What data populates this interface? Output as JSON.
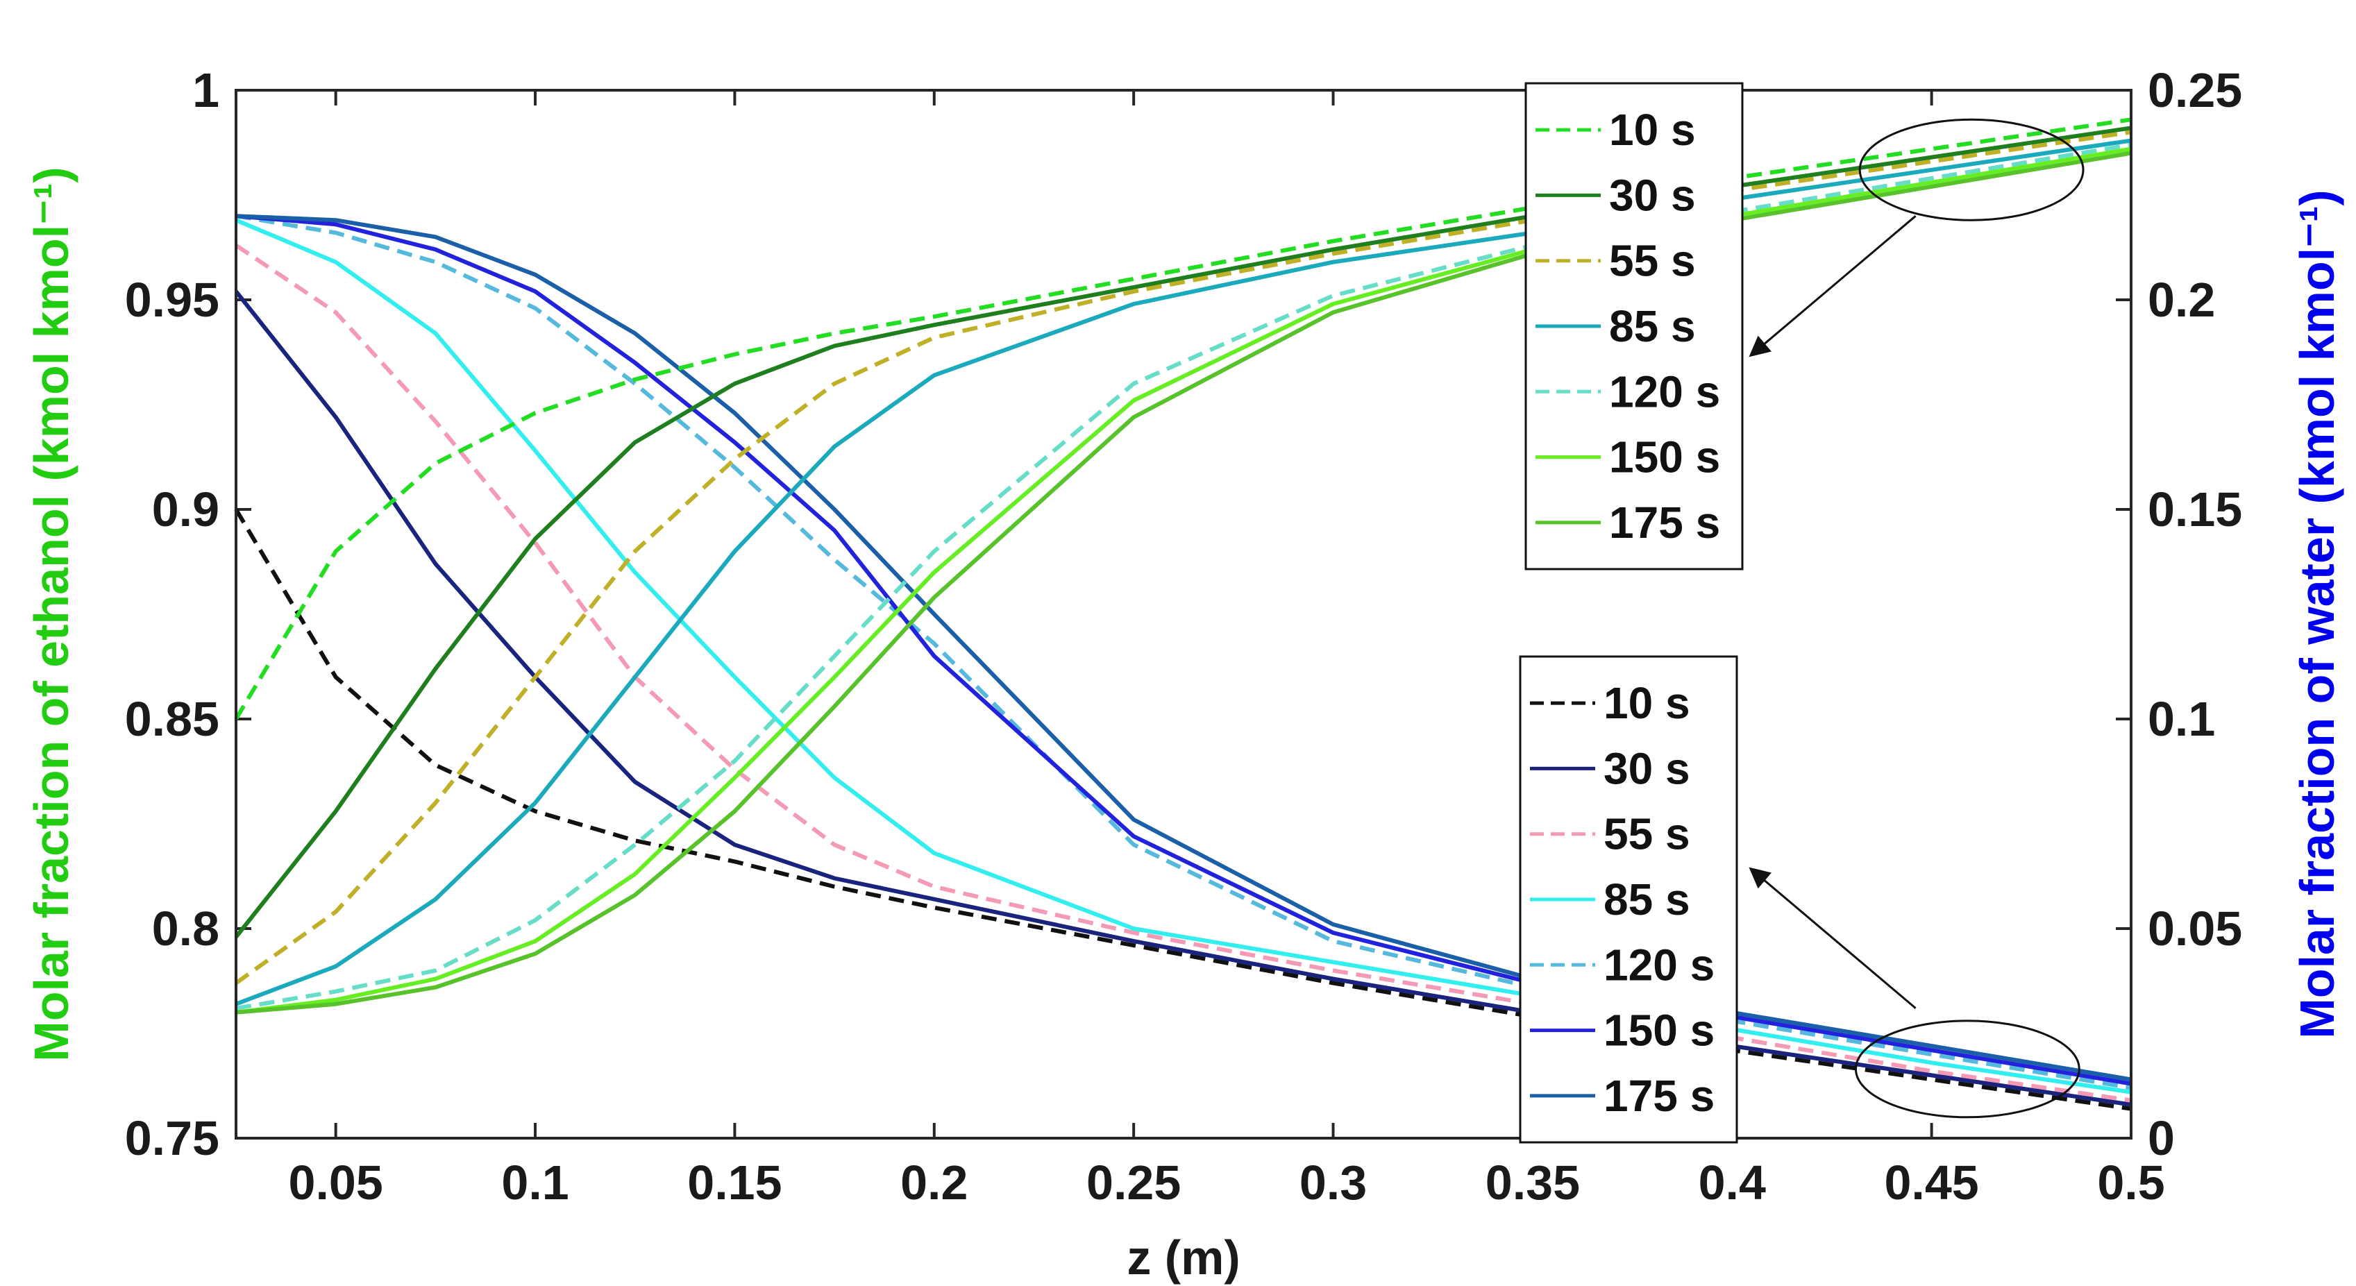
{
  "chart_data": {
    "type": "line",
    "xlabel": "z (m)",
    "ylabel_left": "Molar fraction of ethanol (kmol kmol⁻¹)",
    "ylabel_right": "Molar fraction of water (kmol kmol⁻¹)",
    "xlim": [
      0.025,
      0.5
    ],
    "ylim_left": [
      0.75,
      1
    ],
    "ylim_right": [
      0,
      0.25
    ],
    "x_ticks": [
      {
        "value": 0.05,
        "label": "0.05"
      },
      {
        "value": 0.1,
        "label": "0.1"
      },
      {
        "value": 0.15,
        "label": "0.15"
      },
      {
        "value": 0.2,
        "label": "0.2"
      },
      {
        "value": 0.25,
        "label": "0.25"
      },
      {
        "value": 0.3,
        "label": "0.3"
      },
      {
        "value": 0.35,
        "label": "0.35"
      },
      {
        "value": 0.4,
        "label": "0.4"
      },
      {
        "value": 0.45,
        "label": "0.45"
      },
      {
        "value": 0.5,
        "label": "0.5"
      }
    ],
    "y_ticks_left": [
      {
        "value": 0.75,
        "label": "0.75"
      },
      {
        "value": 0.8,
        "label": "0.8"
      },
      {
        "value": 0.85,
        "label": "0.85"
      },
      {
        "value": 0.9,
        "label": "0.9"
      },
      {
        "value": 0.95,
        "label": "0.95"
      },
      {
        "value": 1.0,
        "label": "1"
      }
    ],
    "y_ticks_right": [
      {
        "value": 0,
        "label": "0"
      },
      {
        "value": 0.05,
        "label": "0.05"
      },
      {
        "value": 0.1,
        "label": "0.1"
      },
      {
        "value": 0.15,
        "label": "0.15"
      },
      {
        "value": 0.2,
        "label": "0.2"
      },
      {
        "value": 0.25,
        "label": "0.25"
      }
    ],
    "x": [
      0.025,
      0.05,
      0.075,
      0.1,
      0.125,
      0.15,
      0.175,
      0.2,
      0.25,
      0.3,
      0.35,
      0.4,
      0.45,
      0.5
    ],
    "ethanol_series": [
      {
        "name": "10 s",
        "color": "#22dd22",
        "dash": "dashed",
        "values": [
          0.85,
          0.89,
          0.911,
          0.923,
          0.931,
          0.937,
          0.942,
          0.946,
          0.955,
          0.964,
          0.972,
          0.979,
          0.986,
          0.993
        ]
      },
      {
        "name": "30 s",
        "color": "#1f7f1f",
        "dash": "solid",
        "values": [
          0.798,
          0.828,
          0.862,
          0.893,
          0.916,
          0.93,
          0.939,
          0.944,
          0.953,
          0.962,
          0.97,
          0.977,
          0.984,
          0.991
        ]
      },
      {
        "name": "55 s",
        "color": "#bfb028",
        "dash": "dashed",
        "values": [
          0.787,
          0.804,
          0.83,
          0.86,
          0.89,
          0.912,
          0.93,
          0.941,
          0.952,
          0.961,
          0.969,
          0.976,
          0.983,
          0.99
        ]
      },
      {
        "name": "85 s",
        "color": "#1aaabb",
        "dash": "solid",
        "values": [
          0.782,
          0.791,
          0.807,
          0.83,
          0.86,
          0.89,
          0.915,
          0.932,
          0.949,
          0.959,
          0.966,
          0.974,
          0.981,
          0.988
        ]
      },
      {
        "name": "120 s",
        "color": "#66ddc8",
        "dash": "dashed",
        "values": [
          0.781,
          0.785,
          0.79,
          0.802,
          0.82,
          0.84,
          0.865,
          0.89,
          0.93,
          0.951,
          0.963,
          0.971,
          0.979,
          0.987
        ]
      },
      {
        "name": "150 s",
        "color": "#66ee22",
        "dash": "solid",
        "values": [
          0.78,
          0.783,
          0.788,
          0.797,
          0.813,
          0.836,
          0.86,
          0.885,
          0.926,
          0.949,
          0.962,
          0.97,
          0.978,
          0.986
        ]
      },
      {
        "name": "175 s",
        "color": "#58c22a",
        "dash": "solid",
        "values": [
          0.78,
          0.782,
          0.786,
          0.794,
          0.808,
          0.828,
          0.853,
          0.879,
          0.922,
          0.947,
          0.961,
          0.969,
          0.977,
          0.985
        ]
      }
    ],
    "water_series": [
      {
        "name": "10 s",
        "color": "#111111",
        "dash": "dashed",
        "values": [
          0.15,
          0.11,
          0.089,
          0.078,
          0.071,
          0.066,
          0.06,
          0.055,
          0.046,
          0.037,
          0.029,
          0.021,
          0.014,
          0.007
        ]
      },
      {
        "name": "30 s",
        "color": "#1a237e",
        "dash": "solid",
        "values": [
          0.202,
          0.172,
          0.137,
          0.11,
          0.085,
          0.07,
          0.062,
          0.057,
          0.047,
          0.038,
          0.03,
          0.022,
          0.015,
          0.008
        ]
      },
      {
        "name": "55 s",
        "color": "#f49ab4",
        "dash": "dashed",
        "values": [
          0.213,
          0.197,
          0.171,
          0.142,
          0.11,
          0.088,
          0.07,
          0.06,
          0.049,
          0.04,
          0.032,
          0.024,
          0.016,
          0.009
        ]
      },
      {
        "name": "85 s",
        "color": "#33eeee",
        "dash": "solid",
        "values": [
          0.219,
          0.209,
          0.192,
          0.164,
          0.135,
          0.11,
          0.086,
          0.068,
          0.05,
          0.042,
          0.034,
          0.026,
          0.018,
          0.011
        ]
      },
      {
        "name": "120 s",
        "color": "#55b8dd",
        "dash": "dashed",
        "values": [
          0.22,
          0.216,
          0.209,
          0.198,
          0.18,
          0.16,
          0.138,
          0.118,
          0.07,
          0.047,
          0.036,
          0.028,
          0.02,
          0.012
        ]
      },
      {
        "name": "150 s",
        "color": "#2222dd",
        "dash": "solid",
        "values": [
          0.22,
          0.218,
          0.212,
          0.202,
          0.185,
          0.166,
          0.145,
          0.115,
          0.072,
          0.049,
          0.037,
          0.029,
          0.021,
          0.013
        ]
      },
      {
        "name": "175 s",
        "color": "#1a5fa8",
        "dash": "solid",
        "values": [
          0.22,
          0.219,
          0.215,
          0.206,
          0.192,
          0.173,
          0.15,
          0.125,
          0.076,
          0.051,
          0.038,
          0.03,
          0.022,
          0.014
        ]
      }
    ],
    "legend_ethanol_position": "top-right",
    "legend_water_position": "bottom-right",
    "annotations": [
      {
        "type": "ellipse",
        "cx": 0.46,
        "cy": 0.981,
        "rx": 0.028,
        "ry": 0.012,
        "axis": "left"
      },
      {
        "type": "ellipse",
        "cx": 0.459,
        "cy": 0.0165,
        "rx": 0.028,
        "ry": 0.0115,
        "axis": "right"
      },
      {
        "type": "arrow",
        "from": [
          0.446,
          0.97
        ],
        "to": [
          0.405,
          0.937
        ],
        "axis": "left"
      },
      {
        "type": "arrow",
        "from": [
          0.446,
          0.031
        ],
        "to": [
          0.405,
          0.064
        ],
        "axis": "right"
      }
    ],
    "ethanol_label_color": "#22cc11",
    "water_label_color": "#0000ee"
  }
}
